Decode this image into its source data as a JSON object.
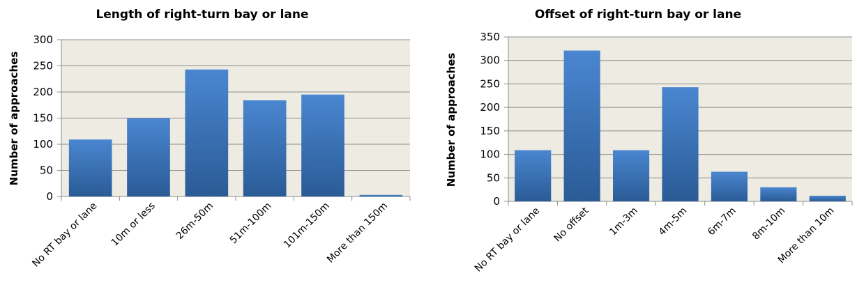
{
  "chart_data": [
    {
      "type": "bar",
      "title": "Length of right-turn bay or lane",
      "xlabel": "",
      "ylabel": "Number of approaches",
      "ylim": [
        0,
        300
      ],
      "yticks": [
        0,
        50,
        100,
        150,
        200,
        250,
        300
      ],
      "grid": true,
      "categories": [
        "No RT bay or lane",
        "10m or less",
        "26m-50m",
        "51m-100m",
        "101m-150m",
        "More than 150m"
      ],
      "values": [
        109,
        150,
        243,
        184,
        195,
        3
      ]
    },
    {
      "type": "bar",
      "title": "Offset of right-turn bay or lane",
      "xlabel": "",
      "ylabel": "Number of approaches",
      "ylim": [
        0,
        350
      ],
      "yticks": [
        0,
        50,
        100,
        150,
        200,
        250,
        300,
        350
      ],
      "grid": true,
      "categories": [
        "No RT bay or lane",
        "No offset",
        "1m-3m",
        "4m-5m",
        "6m-7m",
        "8m-10m",
        "More than 10m"
      ],
      "values": [
        109,
        321,
        109,
        243,
        63,
        30,
        12
      ]
    }
  ],
  "colors": {
    "plot_background": "#edebe2",
    "gridline": "#8c8c8c",
    "bar_light": "#4a86d0",
    "bar_dark": "#2a5b96"
  }
}
